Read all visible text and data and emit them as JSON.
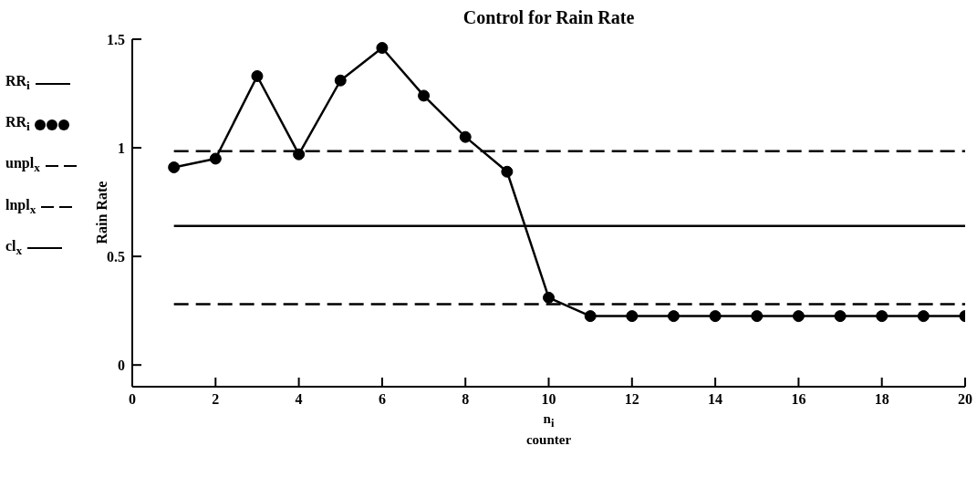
{
  "chart_data": {
    "type": "line",
    "title": "Control for Rain Rate",
    "xlabel": "n$_{i}$",
    "ylabel": "Rain Rate",
    "annotations": [
      "counter"
    ],
    "xlim": [
      0,
      20
    ],
    "xticks": [
      0,
      2,
      4,
      6,
      8,
      10,
      12,
      14,
      16,
      18,
      20
    ],
    "ylim": [
      -0.1,
      1.5
    ],
    "yticks": [
      0,
      0.5,
      1,
      1.5
    ],
    "grid": false,
    "legend": "left",
    "series": [
      {
        "name": "RR$_{i}$",
        "color": "#000000",
        "line_style": "solid",
        "marker": "none",
        "x": [
          1,
          2,
          3,
          4,
          5,
          6,
          7,
          8,
          9,
          10,
          11,
          12,
          13,
          14,
          15,
          16,
          17,
          18,
          19,
          20
        ],
        "values": [
          0.91,
          0.95,
          1.33,
          0.97,
          1.31,
          1.46,
          1.24,
          1.05,
          0.89,
          0.31,
          0.225,
          0.225,
          0.225,
          0.225,
          0.225,
          0.225,
          0.225,
          0.225,
          0.225,
          0.225
        ]
      },
      {
        "name": "RR$_{i}$",
        "type": "scatter",
        "color": "#000000",
        "marker": "circle",
        "x": [
          1,
          2,
          3,
          4,
          5,
          6,
          7,
          8,
          9,
          10,
          11,
          12,
          13,
          14,
          15,
          16,
          17,
          18,
          19,
          20
        ],
        "values": [
          0.91,
          0.95,
          1.33,
          0.97,
          1.31,
          1.46,
          1.24,
          1.05,
          0.89,
          0.31,
          0.225,
          0.225,
          0.225,
          0.225,
          0.225,
          0.225,
          0.225,
          0.225,
          0.225,
          0.225
        ]
      },
      {
        "name": "unpl$_{x}$",
        "color": "#000000",
        "line_style": "dashed",
        "marker": "none",
        "x": [
          1,
          20
        ],
        "values": [
          0.985,
          0.985
        ]
      },
      {
        "name": "lnpl$_{x}$",
        "color": "#000000",
        "line_style": "dashed",
        "marker": "none",
        "x": [
          1,
          20
        ],
        "values": [
          0.28,
          0.28
        ]
      },
      {
        "name": "cl$_{x}$",
        "color": "#000000",
        "line_style": "solid",
        "marker": "none",
        "x": [
          1,
          20
        ],
        "values": [
          0.64,
          0.64
        ]
      }
    ]
  }
}
